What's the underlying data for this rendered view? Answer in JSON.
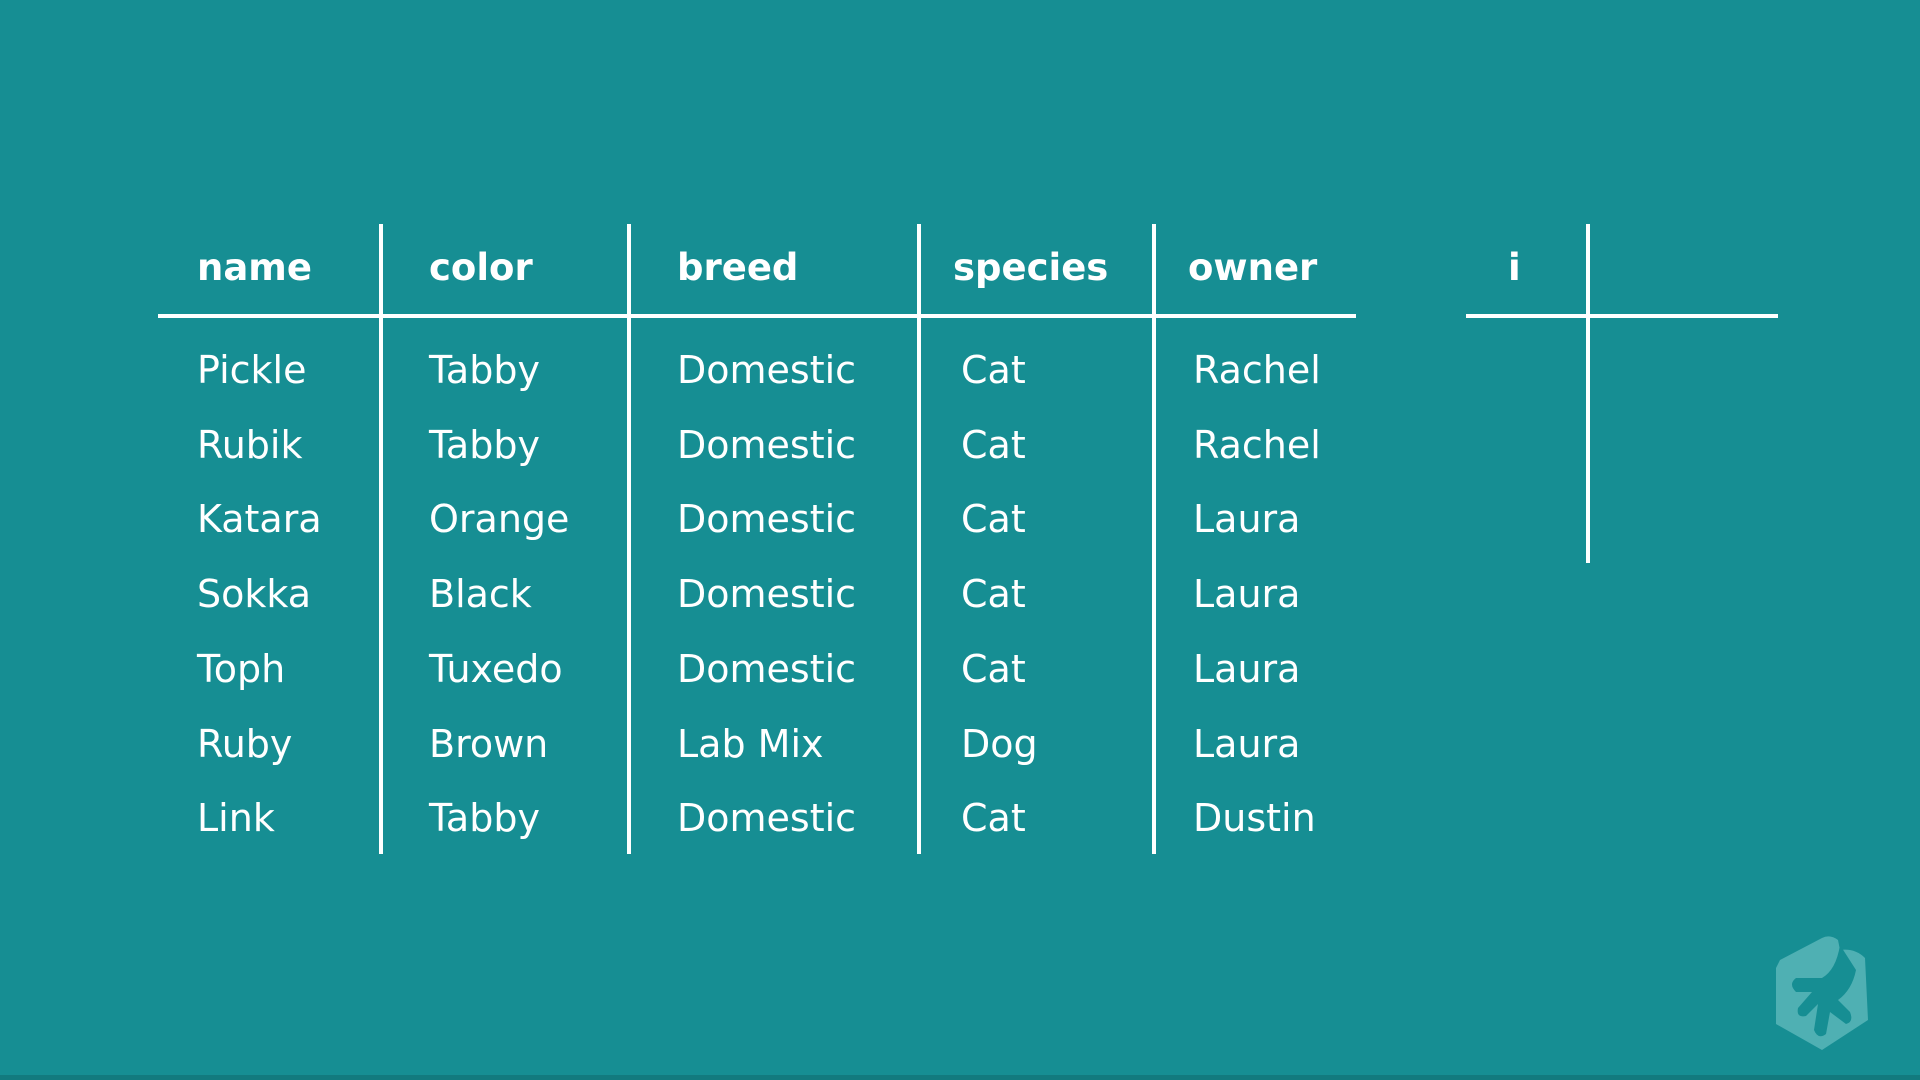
{
  "pets_table": {
    "columns": [
      "name",
      "color",
      "breed",
      "species",
      "owner"
    ],
    "rows": [
      [
        "Pickle",
        "Tabby",
        "Domestic",
        "Cat",
        "Rachel"
      ],
      [
        "Rubik",
        "Tabby",
        "Domestic",
        "Cat",
        "Rachel"
      ],
      [
        "Katara",
        "Orange",
        "Domestic",
        "Cat",
        "Laura"
      ],
      [
        "Sokka",
        "Black",
        "Domestic",
        "Cat",
        "Laura"
      ],
      [
        "Toph",
        "Tuxedo",
        "Domestic",
        "Cat",
        "Laura"
      ],
      [
        "Ruby",
        "Brown",
        "Lab Mix",
        "Dog",
        "Laura"
      ],
      [
        "Link",
        "Tabby",
        "Domestic",
        "Cat",
        "Dustin"
      ]
    ]
  },
  "second_table": {
    "columns": [
      "i",
      ""
    ]
  },
  "logo": {
    "icon": "treehouse-frog-hand-icon"
  },
  "colors": {
    "background": "#168e93",
    "lines": "#ffffff",
    "logo": "#4fb0b3"
  }
}
